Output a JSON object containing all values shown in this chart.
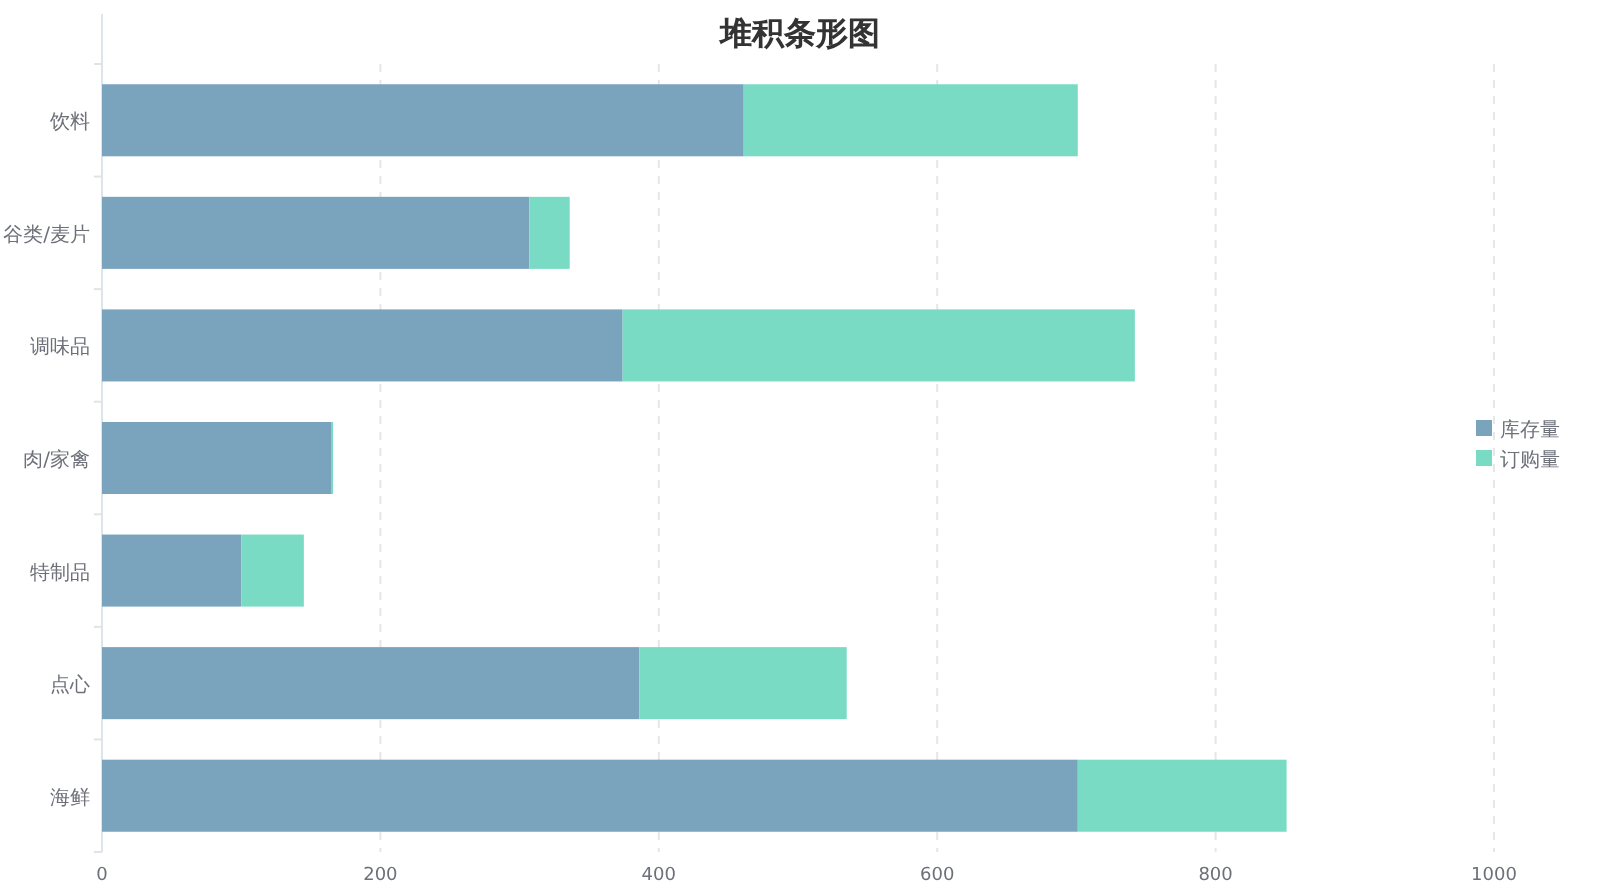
{
  "chart_data": {
    "type": "bar",
    "orientation": "horizontal",
    "stacked": true,
    "title": "堆积条形图",
    "categories": [
      "饮料",
      "谷类/麦片",
      "调味品",
      "肉/家禽",
      "特制品",
      "点心",
      "海鲜"
    ],
    "series": [
      {
        "name": "库存量",
        "color": "#7aa3be",
        "values": [
          461,
          307,
          374,
          165,
          100,
          386,
          701
        ]
      },
      {
        "name": "订购量",
        "color": "#7adbc4",
        "values": [
          240,
          29,
          368,
          1,
          45,
          149,
          150
        ]
      }
    ],
    "xlim": [
      0,
      1000
    ],
    "xticks": [
      0,
      200,
      400,
      600,
      800,
      1000
    ],
    "grid": "x",
    "legend": "right"
  }
}
